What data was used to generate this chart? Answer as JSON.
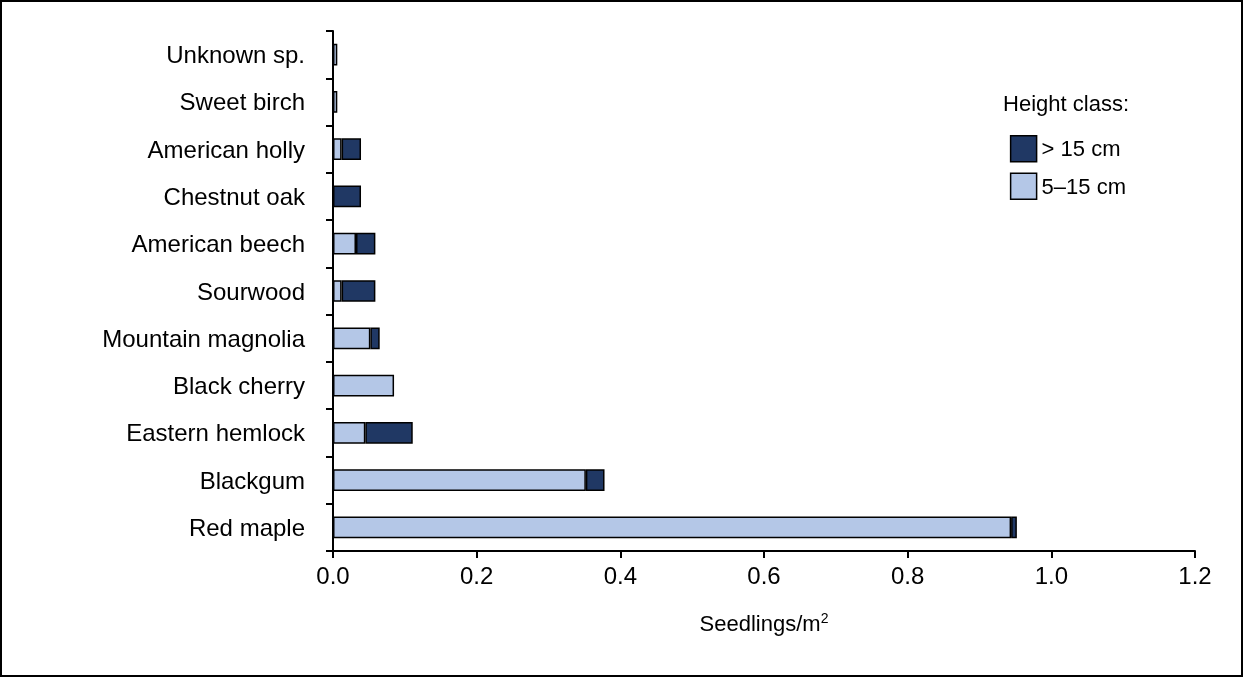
{
  "chart_data": {
    "type": "bar",
    "orientation": "horizontal",
    "stacked": true,
    "xlabel": "Seedlings/m$^{2}$",
    "legend_title": "Height class:",
    "legend": "top right",
    "grid": false,
    "categories": [
      "Unknown sp.",
      "Sweet birch",
      "American holly",
      "Chestnut oak",
      "American beech",
      "Sourwood",
      "Mountain magnolia",
      "Black cherry",
      "Eastern hemlock",
      "Blackgum",
      "Red maple"
    ],
    "series": [
      {
        "name": "5–15 cm",
        "color": "#b4c7e7",
        "values": [
          0.006,
          0.006,
          0.012,
          0,
          0.032,
          0.012,
          0.052,
          0.085,
          0.045,
          0.352,
          0.944
        ]
      },
      {
        "name": "> 15 cm",
        "color": "#203864",
        "values": [
          0,
          0,
          0.027,
          0.039,
          0.027,
          0.047,
          0.013,
          0,
          0.066,
          0.026,
          0.008
        ]
      }
    ],
    "xlim": [
      0,
      1.2
    ],
    "xticks": [
      {
        "value": 0,
        "label": "0.0"
      },
      0.2,
      0.4,
      0.6,
      0.8,
      {
        "value": 1,
        "label": "1.0"
      },
      1.2
    ]
  }
}
